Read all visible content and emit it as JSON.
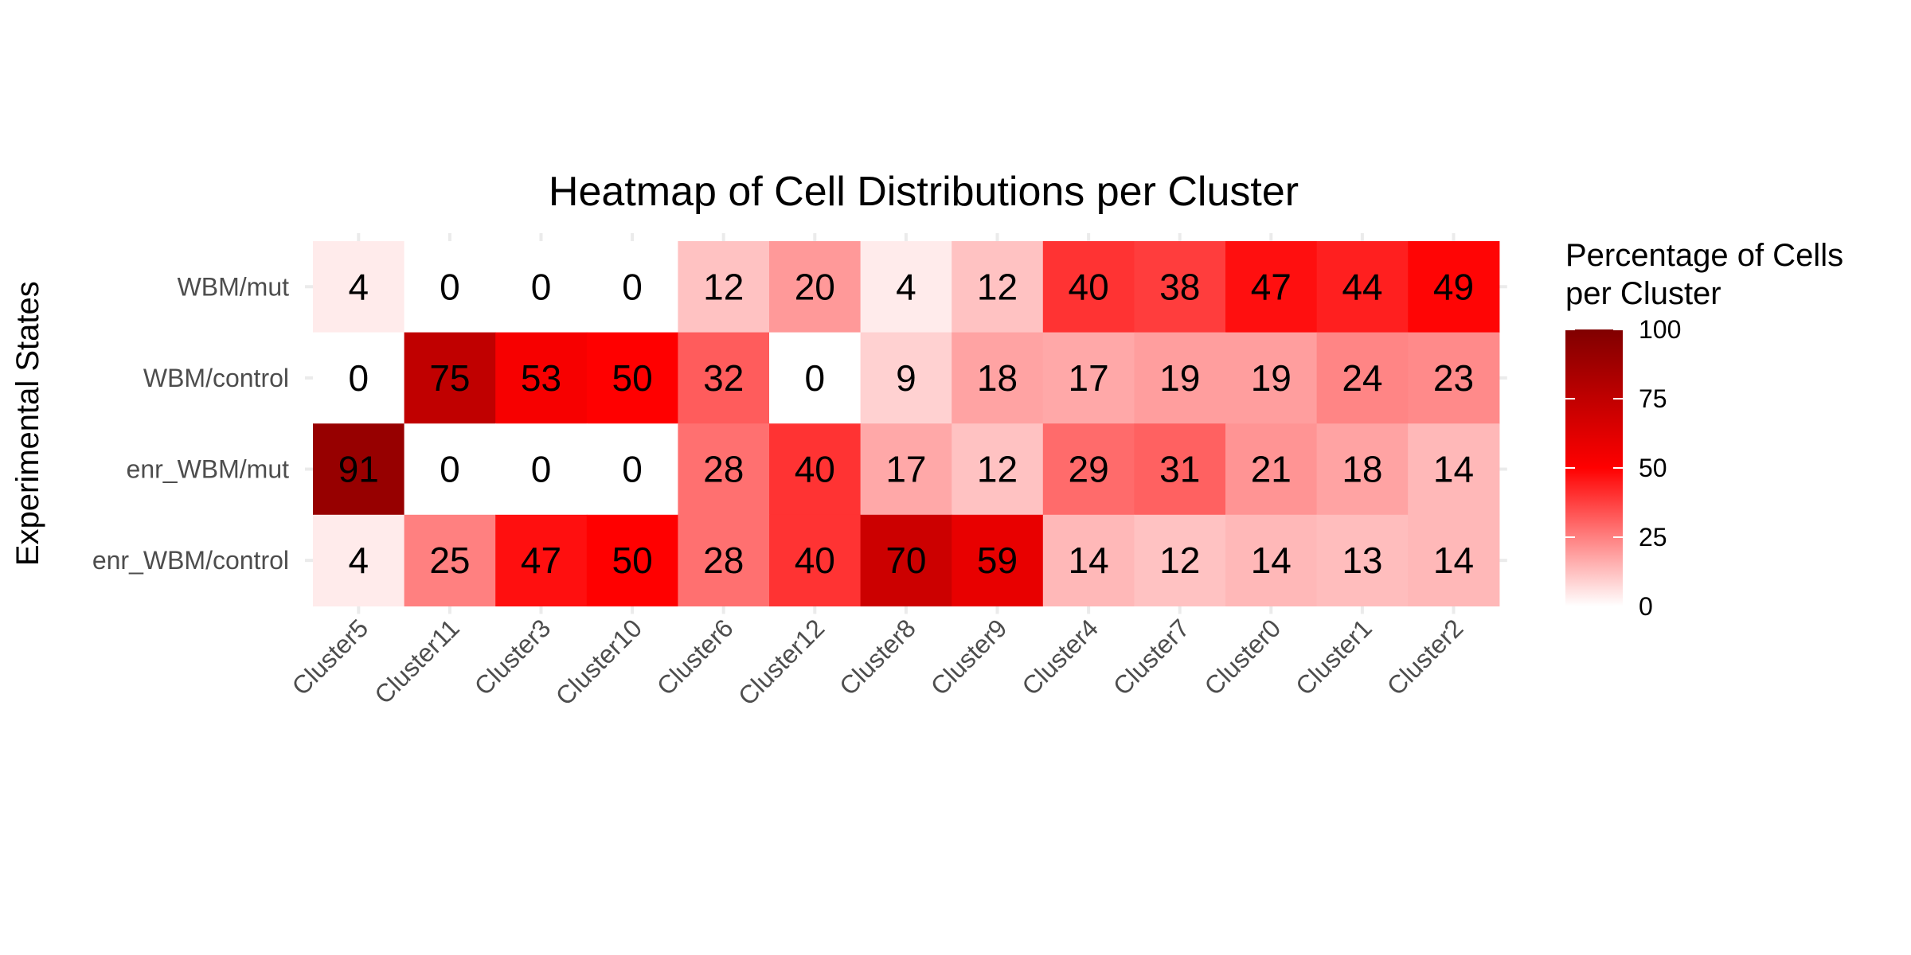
{
  "chart_data": {
    "type": "heatmap",
    "title": "Heatmap of Cell Distributions per Cluster",
    "xlabel": "",
    "ylabel": "Experimental States",
    "x_categories": [
      "Cluster5",
      "Cluster11",
      "Cluster3",
      "Cluster10",
      "Cluster6",
      "Cluster12",
      "Cluster8",
      "Cluster9",
      "Cluster4",
      "Cluster7",
      "Cluster0",
      "Cluster1",
      "Cluster2"
    ],
    "y_categories": [
      "WBM/mut",
      "WBM/control",
      "enr_WBM/mut",
      "enr_WBM/control"
    ],
    "values": [
      [
        4,
        0,
        0,
        0,
        12,
        20,
        4,
        12,
        40,
        38,
        47,
        44,
        49
      ],
      [
        0,
        75,
        53,
        50,
        32,
        0,
        9,
        18,
        17,
        19,
        19,
        24,
        23
      ],
      [
        91,
        0,
        0,
        0,
        28,
        40,
        17,
        12,
        29,
        31,
        21,
        18,
        14
      ],
      [
        4,
        25,
        47,
        50,
        28,
        40,
        70,
        59,
        14,
        12,
        14,
        13,
        14
      ]
    ],
    "legend": {
      "title_line1": "Percentage of Cells",
      "title_line2": "per Cluster",
      "placement": "right",
      "ticks": [
        0,
        25,
        50,
        75,
        100
      ],
      "range": [
        0,
        100
      ]
    },
    "colors": {
      "low": "#ffffff",
      "mid": "#ff0000",
      "high": "#800000"
    }
  }
}
